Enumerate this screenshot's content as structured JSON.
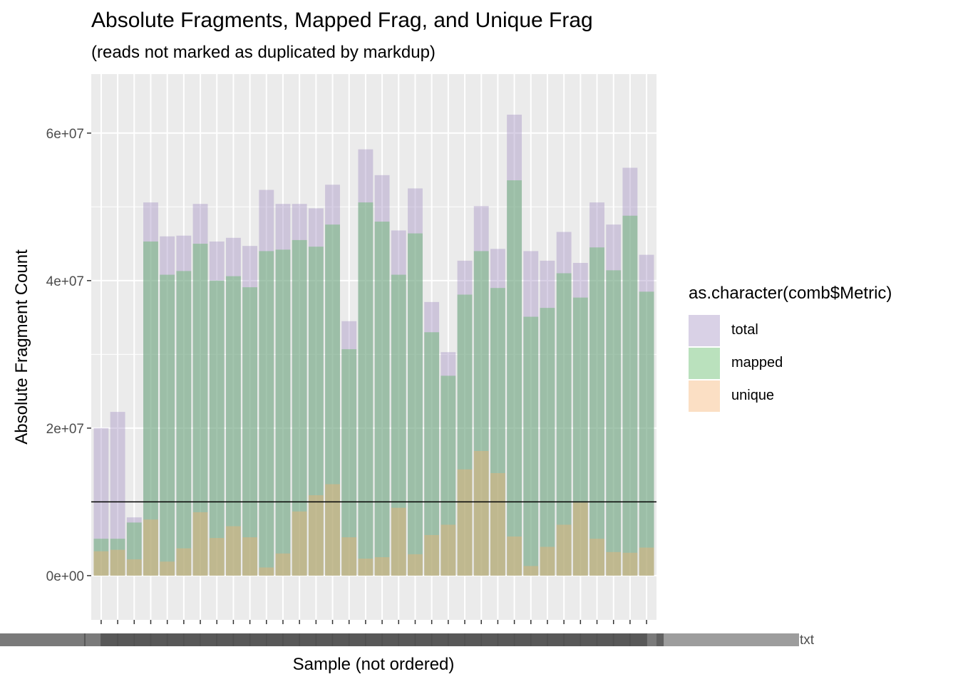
{
  "title": "Absolute Fragments, Mapped Frag, and Unique Frag",
  "subtitle": "(reads not marked as duplicated by markdup)",
  "chart_data": {
    "type": "bar",
    "xlabel": "Sample (not ordered)",
    "ylabel": "Absolute Fragment Count",
    "ylim": [
      -6000000,
      68000000
    ],
    "yticks": [
      0,
      20000000,
      40000000,
      60000000
    ],
    "ytick_labels": [
      "0e+00",
      "2e+07",
      "4e+07",
      "6e+07"
    ],
    "x_tick_labels_note": "overlapping illegible sample labels",
    "x_tick_labels_visible": "txt",
    "hline": 10000000,
    "legend_title": "as.character(comb$Metric)",
    "bar_opacity": 0.4,
    "categories": [
      "1",
      "2",
      "3",
      "4",
      "5",
      "6",
      "7",
      "8",
      "9",
      "10",
      "11",
      "12",
      "13",
      "14",
      "15",
      "16",
      "17",
      "18",
      "19",
      "20",
      "21",
      "22",
      "23",
      "24",
      "25",
      "26",
      "27",
      "28",
      "29",
      "30",
      "31",
      "32",
      "33",
      "34"
    ],
    "series": [
      {
        "name": "total",
        "color": "#9F8CC0",
        "values": [
          20000000,
          22200000,
          7900000,
          50600000,
          46000000,
          46100000,
          50400000,
          45300000,
          45800000,
          44700000,
          52300000,
          50400000,
          50400000,
          49800000,
          53000000,
          34500000,
          57800000,
          54300000,
          46800000,
          52500000,
          37100000,
          30300000,
          42700000,
          50100000,
          44300000,
          62500000,
          44000000,
          42700000,
          46600000,
          42400000,
          50600000,
          47600000,
          55300000,
          43500000
        ]
      },
      {
        "name": "mapped",
        "color": "#53B359",
        "values": [
          5000000,
          5000000,
          7200000,
          45300000,
          40800000,
          41300000,
          45000000,
          40000000,
          40600000,
          39100000,
          44000000,
          44200000,
          45500000,
          44600000,
          47600000,
          30700000,
          50600000,
          48000000,
          40800000,
          46400000,
          33000000,
          27100000,
          38100000,
          44000000,
          39000000,
          53600000,
          35100000,
          36300000,
          41000000,
          37700000,
          44500000,
          41400000,
          48800000,
          38500000
        ]
      },
      {
        "name": "unique",
        "color": "#F5AE6C",
        "values": [
          3300000,
          3500000,
          2200000,
          7600000,
          1900000,
          3700000,
          8600000,
          5100000,
          6700000,
          5200000,
          1100000,
          3000000,
          8700000,
          10900000,
          12400000,
          5200000,
          2300000,
          2500000,
          9200000,
          2900000,
          5500000,
          6900000,
          14400000,
          16900000,
          13900000,
          5300000,
          1300000,
          3900000,
          6900000,
          9900000,
          5000000,
          3200000,
          3100000,
          3800000
        ]
      }
    ]
  }
}
